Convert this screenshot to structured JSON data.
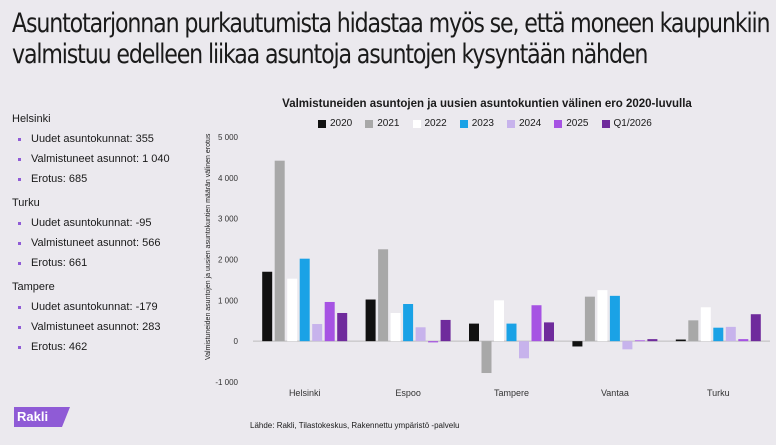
{
  "header": {
    "title_line1": "Asuntotarjonnan purkautumista hidastaa myös se, että moneen kaupunkiin",
    "title_line2": "valmistuu edelleen liikaa asuntoja asuntojen kysyntään nähden"
  },
  "stats": [
    {
      "city": "Helsinki",
      "items": [
        "Uudet asuntokunnat: 355",
        "Valmistuneet asunnot: 1 040",
        "Erotus: 685"
      ]
    },
    {
      "city": "Turku",
      "items": [
        "Uudet asuntokunnat: -95",
        "Valmistuneet asunnot: 566",
        "Erotus: 661"
      ]
    },
    {
      "city": "Tampere",
      "items": [
        "Uudet asuntokunnat: -179",
        "Valmistuneet asunnot: 283",
        "Erotus: 462"
      ]
    }
  ],
  "logo": {
    "text": "Rakli",
    "color": "#8f5bd6"
  },
  "source": "Lähde: Rakli, Tilastokeskus, Rakennettu ympäristö -palvelu",
  "chart_data": {
    "type": "bar",
    "title": "Valmistuneiden asuntojen ja uusien asuntokuntien välinen ero 2020-luvulla",
    "ylabel": "Valmistuneiden asuntojen ja uusien asuntokuntien määrän välinen erotus",
    "ylim": [
      -1000,
      5000
    ],
    "yticks": [
      -1000,
      0,
      1000,
      2000,
      3000,
      4000,
      5000
    ],
    "ytick_labels": [
      "-1 000",
      "0",
      "1 000",
      "2 000",
      "3 000",
      "4 000",
      "5 000"
    ],
    "categories": [
      "Helsinki",
      "Espoo",
      "Tampere",
      "Vantaa",
      "Turku"
    ],
    "legend_position": "top",
    "grid": false,
    "series": [
      {
        "name": "2020",
        "color": "#111111",
        "values": [
          1700,
          1020,
          430,
          -130,
          40
        ]
      },
      {
        "name": "2021",
        "color": "#a8a8a8",
        "values": [
          4420,
          2250,
          -780,
          1090,
          510
        ]
      },
      {
        "name": "2022",
        "color": "#ffffff",
        "values": [
          1530,
          690,
          1000,
          1250,
          830
        ]
      },
      {
        "name": "2023",
        "color": "#1aa2e6",
        "values": [
          2020,
          910,
          430,
          1110,
          330
        ]
      },
      {
        "name": "2024",
        "color": "#c7b3ec",
        "values": [
          420,
          340,
          -420,
          -200,
          350
        ]
      },
      {
        "name": "2025",
        "color": "#a653e3",
        "values": [
          960,
          -30,
          880,
          20,
          50
        ]
      },
      {
        "name": "Q1/2026",
        "color": "#6f2b9c",
        "values": [
          690,
          520,
          460,
          50,
          660
        ]
      }
    ]
  }
}
